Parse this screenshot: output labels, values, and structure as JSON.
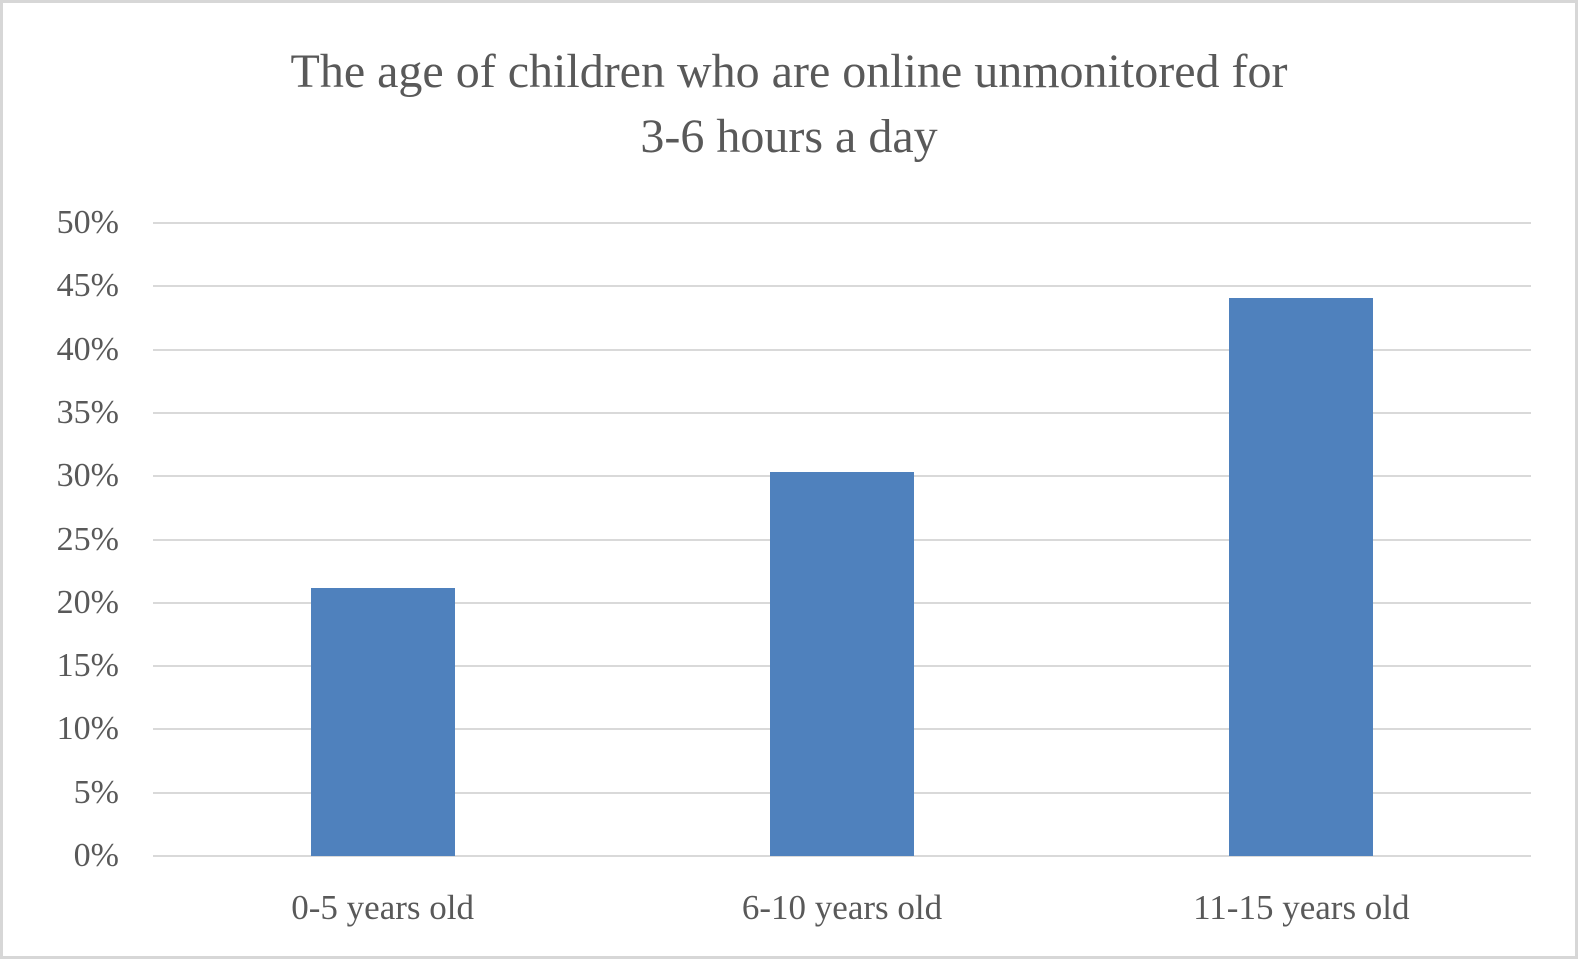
{
  "chart_data": {
    "type": "bar",
    "title": "The age of children who are online unmonitored for 3-6 hours a day",
    "title_lines": [
      "The age of children who are online unmonitored for",
      "3-6 hours a day"
    ],
    "categories": [
      "0-5 years old",
      "6-10 years old",
      "11-15 years old"
    ],
    "values": [
      21.2,
      30.3,
      44.1
    ],
    "value_unit": "%",
    "xlabel": "",
    "ylabel": "",
    "ylim": [
      0,
      50
    ],
    "ytick_step": 5,
    "ytick_labels": [
      "0%",
      "5%",
      "10%",
      "15%",
      "20%",
      "25%",
      "30%",
      "35%",
      "40%",
      "45%",
      "50%"
    ],
    "grid": true,
    "legend": false,
    "colors": {
      "bar": "#4F81BD",
      "gridline": "#D9D9D9",
      "text": "#595959",
      "background": "#FFFFFF",
      "frame_border": "#D7D7D7"
    }
  }
}
